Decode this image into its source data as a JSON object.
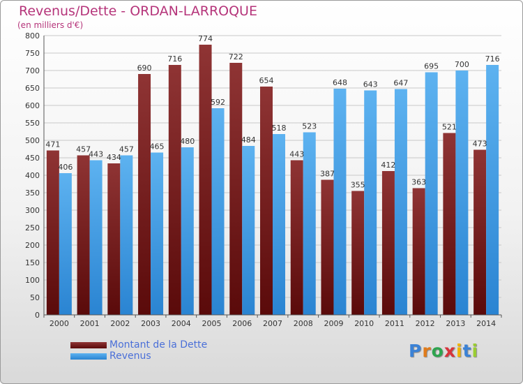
{
  "header": {
    "title": "Revenus/Dette - ORDAN-LARROQUE",
    "subtitle": "(en milliers d'€)"
  },
  "colors": {
    "dette": "#7b1b1e",
    "revenus": "#3d9ae8",
    "title": "#b5347a",
    "legend_text": "#4a6fd8"
  },
  "legend": {
    "items": [
      {
        "label": "Montant de la Dette",
        "color": "#7b1b1e"
      },
      {
        "label": "Revenus",
        "color": "#3d9ae8"
      }
    ]
  },
  "logo": {
    "letters": [
      "P",
      "r",
      "o",
      "x",
      "i",
      "t",
      "i"
    ],
    "colors": [
      "#3b82d6",
      "#e07b1a",
      "#2ea44f",
      "#d8333a",
      "#f0b400",
      "#3b82d6",
      "#9acd32"
    ]
  },
  "chart_data": {
    "type": "bar",
    "title": "Revenus/Dette - ORDAN-LARROQUE",
    "subtitle": "(en milliers d'€)",
    "categories": [
      "2000",
      "2001",
      "2002",
      "2003",
      "2004",
      "2005",
      "2006",
      "2007",
      "2008",
      "2009",
      "2010",
      "2011",
      "2012",
      "2013",
      "2014"
    ],
    "series": [
      {
        "name": "Montant de la Dette",
        "values": [
          471,
          457,
          434,
          690,
          716,
          774,
          722,
          654,
          443,
          387,
          355,
          412,
          363,
          521,
          473
        ]
      },
      {
        "name": "Revenus",
        "values": [
          406,
          443,
          457,
          465,
          480,
          592,
          484,
          518,
          523,
          648,
          643,
          647,
          695,
          700,
          716
        ]
      }
    ],
    "ylim": [
      0,
      800
    ],
    "yticks": [
      0,
      50,
      100,
      150,
      200,
      250,
      300,
      350,
      400,
      450,
      500,
      550,
      600,
      650,
      700,
      750,
      800
    ],
    "grid": true,
    "legend_position": "bottom-left"
  }
}
